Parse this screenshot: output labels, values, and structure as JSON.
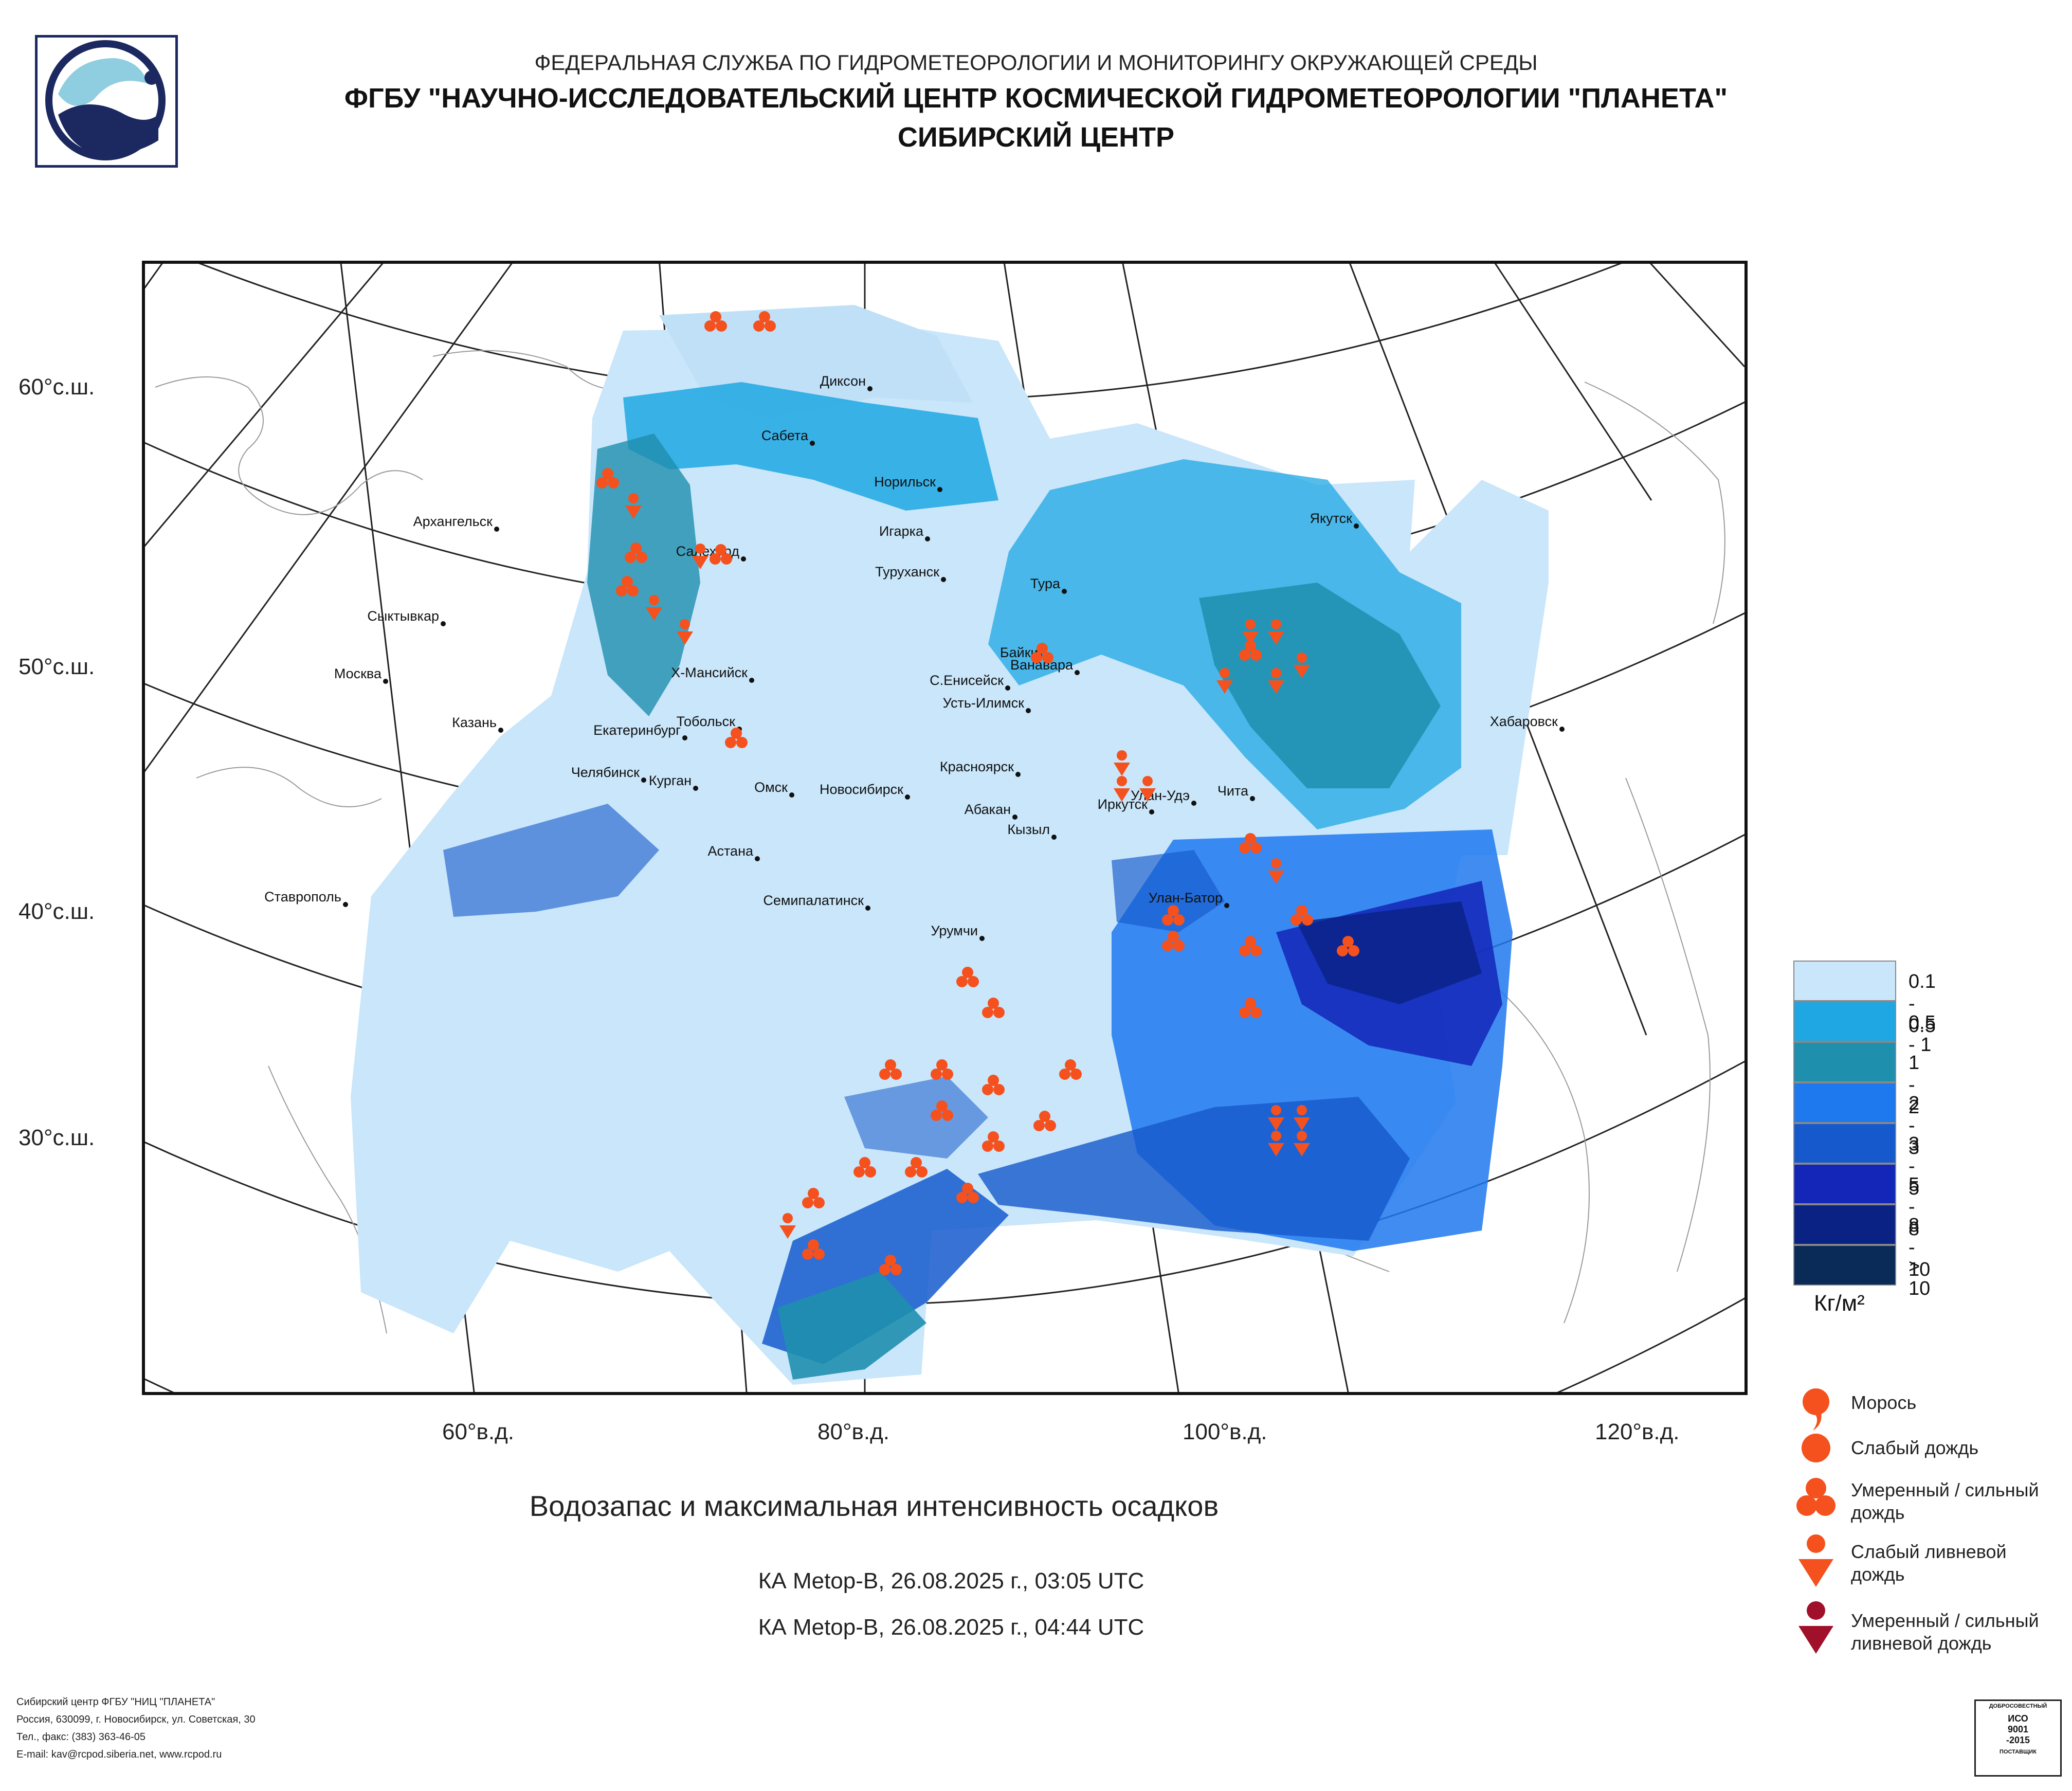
{
  "header": {
    "line1": "ФЕДЕРАЛЬНАЯ СЛУЖБА ПО ГИДРОМЕТЕОРОЛОГИИ И МОНИТОРИНГУ ОКРУЖАЮЩЕЙ СРЕДЫ",
    "line2": "ФГБУ \"НАУЧНО-ИССЛЕДОВАТЕЛЬСКИЙ ЦЕНТР КОСМИЧЕСКОЙ ГИДРОМЕТЕОРОЛОГИИ \"ПЛАНЕТА\"",
    "line3": "СИБИРСКИЙ ЦЕНТР"
  },
  "latitude_labels": [
    "60°с.ш.",
    "50°с.ш.",
    "40°с.ш.",
    "30°с.ш."
  ],
  "longitude_labels": [
    "60°в.д.",
    "80°в.д.",
    "100°в.д.",
    "120°в.д."
  ],
  "cities": [
    "Диксон",
    "Сабета",
    "Норильск",
    "Архангельск",
    "Игарка",
    "Якутск",
    "Салехард",
    "Туруханск",
    "Тура",
    "Сыктывкар",
    "Байкит",
    "Ванавара",
    "Москва",
    "Х-Мансийск",
    "С.Енисейск",
    "Усть-Илимск",
    "Хабаровск",
    "Казань",
    "Екатеринбург",
    "Тобольск",
    "Красноярск",
    "Челябинск",
    "Курган",
    "Омск",
    "Новосибирск",
    "Чита",
    "Абакан",
    "Улан-Удэ",
    "Иркутск",
    "Кызыл",
    "Астана",
    "Ставрополь",
    "Семипалатинск",
    "Улан-Батор",
    "Урумчи"
  ],
  "map_title": "Водозапас и максимальная интенсивность осадков",
  "satellite_passes": [
    "КА Metop-B, 26.08.2025 г., 03:05 UTC",
    "КА Metop-B, 26.08.2025 г., 04:44 UTC"
  ],
  "scale": [
    {
      "label": "0.1 - 0.5",
      "color": "#c9e6fa"
    },
    {
      "label": "0.5 - 1",
      "color": "#1ea7e3"
    },
    {
      "label": "1 - 2",
      "color": "#1f8fae"
    },
    {
      "label": "2 - 3",
      "color": "#1e78ee"
    },
    {
      "label": "3 - 5",
      "color": "#1559cc"
    },
    {
      "label": "5 - 8",
      "color": "#1326b8"
    },
    {
      "label": "8 - 10",
      "color": "#0a2284"
    },
    {
      "label": "> 10",
      "color": "#0a2a58"
    }
  ],
  "unit_label": "Кг/м²",
  "symbols": {
    "drizzle": "Морось",
    "light_rain": "Слабый дождь",
    "moderate_rain_1": "Умеренный / сильный",
    "moderate_rain_2": "дождь",
    "light_shower_1": "Слабый ливневой",
    "light_shower_2": "дождь",
    "heavy_shower_1": "Умеренный / сильный",
    "heavy_shower_2": "ливневой дождь",
    "orange": "#f4511e",
    "dark_red": "#a1102a"
  },
  "footer": {
    "line1": "Сибирский центр ФГБУ \"НИЦ \"ПЛАНЕТА\"",
    "line2": "Россия, 630099, г. Новосибирск, ул. Советская, 30",
    "line3": "Тел., факс: (383) 363-46-05",
    "line4": "E-mail: kav@rcpod.siberia.net, www.rcpod.ru"
  },
  "iso": {
    "top": "ДОБРОСОВЕСТНЫЙ",
    "l1": "ИСО",
    "l2": "9001",
    "l3": "-2015",
    "bottom": "ПОСТАВЩИК"
  }
}
